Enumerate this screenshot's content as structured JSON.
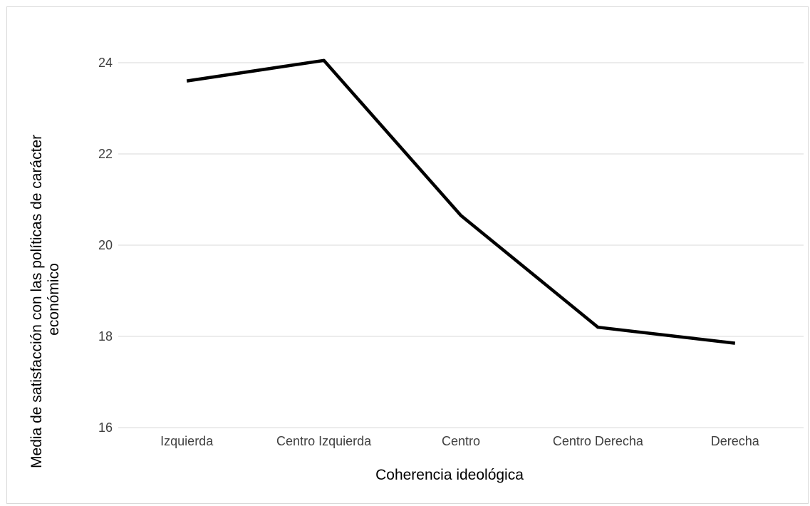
{
  "chart_data": {
    "type": "line",
    "title": "",
    "xlabel": "Coherencia ideológica",
    "ylabel_lines": [
      "Media de satisfacción con las políticas de  carácter",
      "económico"
    ],
    "categories": [
      "Izquierda",
      "Centro Izquierda",
      "Centro",
      "Centro Derecha",
      "Derecha"
    ],
    "series": [
      {
        "values": [
          23.6,
          24.05,
          20.65,
          18.2,
          17.85
        ]
      }
    ],
    "ylim": [
      16,
      24
    ],
    "yticks": [
      "16",
      "18",
      "20",
      "22",
      "24"
    ],
    "grid": true,
    "line_color": "#000000",
    "grid_color": "#d9d9d9"
  }
}
